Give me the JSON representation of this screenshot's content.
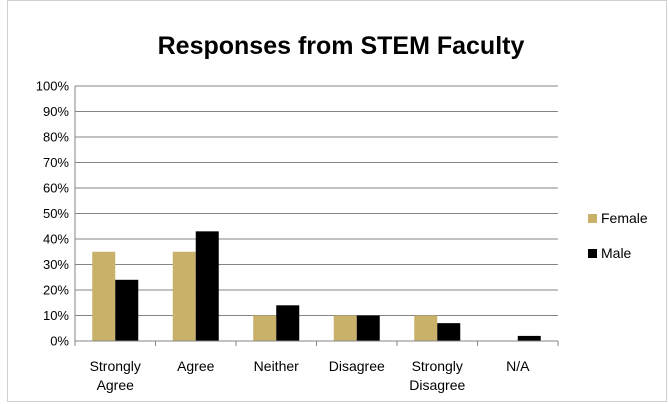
{
  "chart_data": {
    "type": "bar",
    "title": "Responses from STEM Faculty",
    "xlabel": "",
    "ylabel": "",
    "categories": [
      "Strongly Agree",
      "Agree",
      "Neither",
      "Disagree",
      "Strongly Disagree",
      "N/A"
    ],
    "category_lines": [
      [
        "Strongly",
        "Agree"
      ],
      [
        "Agree"
      ],
      [
        "Neither"
      ],
      [
        "Disagree"
      ],
      [
        "Strongly",
        "Disagree"
      ],
      [
        "N/A"
      ]
    ],
    "series": [
      {
        "name": "Female",
        "color": "#c9b16a",
        "values": [
          35,
          35,
          10,
          10,
          10,
          0
        ]
      },
      {
        "name": "Male",
        "color": "#000000",
        "values": [
          24,
          43,
          14,
          10,
          7,
          2
        ]
      }
    ],
    "ylim": [
      0,
      100
    ],
    "yticks": [
      0,
      10,
      20,
      30,
      40,
      50,
      60,
      70,
      80,
      90,
      100
    ],
    "ytick_labels": [
      "0%",
      "10%",
      "20%",
      "30%",
      "40%",
      "50%",
      "60%",
      "70%",
      "80%",
      "90%",
      "100%"
    ],
    "grid": true,
    "legend": "right"
  }
}
